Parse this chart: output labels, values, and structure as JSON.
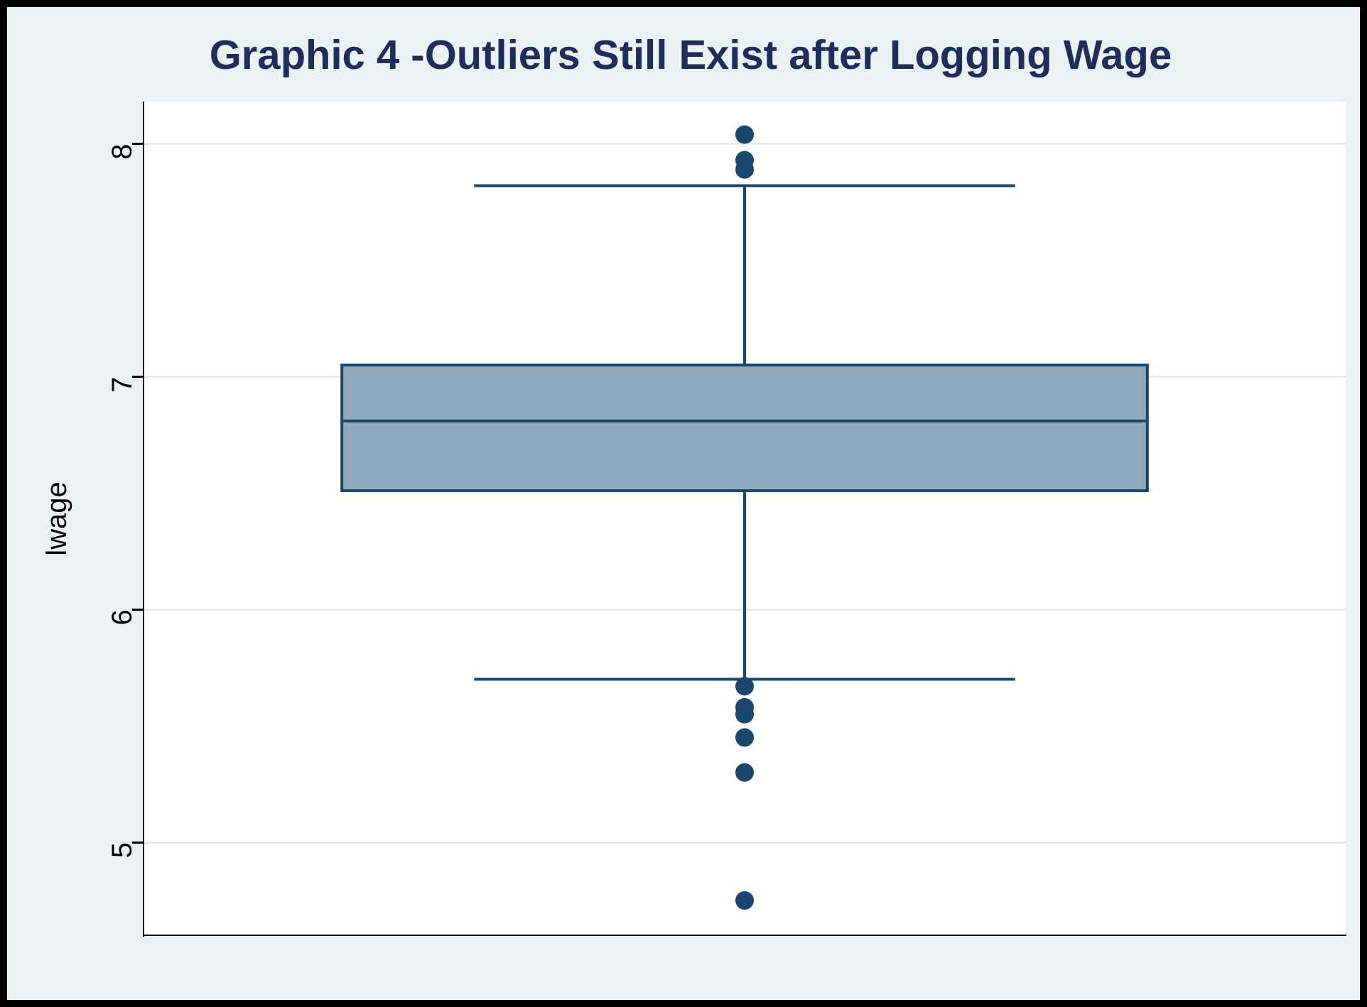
{
  "chart_data": {
    "type": "box",
    "title": "Graphic 4 -Outliers Still Exist after Logging Wage",
    "ylabel": "lwage",
    "categories": [
      null
    ],
    "boxes": [
      {
        "low": 5.7,
        "q1": 6.51,
        "median": 6.81,
        "q3": 7.05,
        "high": 7.82,
        "outliers": [
          8.04,
          7.93,
          7.89,
          5.67,
          5.58,
          5.55,
          5.45,
          5.3,
          4.75
        ]
      }
    ],
    "color": "#90a8bc",
    "ylim": [
      4.6,
      8.18
    ],
    "yticks": [
      5,
      6,
      7,
      8
    ],
    "grid": "y",
    "legend": false,
    "marker": "circle"
  }
}
